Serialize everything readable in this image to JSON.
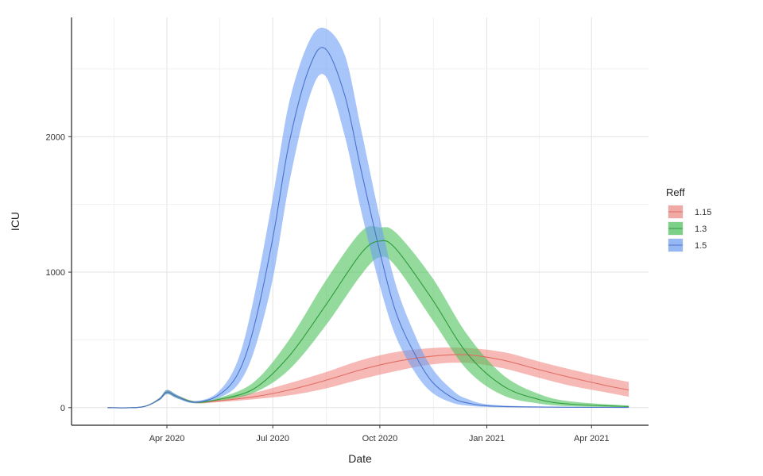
{
  "chart_data": {
    "type": "area",
    "xlabel": "Date",
    "ylabel": "ICU",
    "xlim": [
      "2020-01-10",
      "2021-05-20"
    ],
    "ylim": [
      -130,
      2880
    ],
    "x_ticks": [
      {
        "date": "2020-04-01",
        "label": "Apr 2020"
      },
      {
        "date": "2020-07-01",
        "label": "Jul 2020"
      },
      {
        "date": "2020-10-01",
        "label": "Oct 2020"
      },
      {
        "date": "2021-01-01",
        "label": "Jan 2021"
      },
      {
        "date": "2021-04-01",
        "label": "Apr 2021"
      }
    ],
    "y_ticks": [
      0,
      1000,
      2000
    ],
    "grid": true,
    "legend": {
      "title": "Reff",
      "position": "right"
    },
    "series": [
      {
        "name": "1.15",
        "color": "#f08a84",
        "line_color": "#e06d65",
        "points": [
          {
            "date": "2020-02-10",
            "y": 0,
            "lo": 0,
            "hi": 0
          },
          {
            "date": "2020-03-10",
            "y": 4,
            "lo": 3,
            "hi": 5
          },
          {
            "date": "2020-03-25",
            "y": 60,
            "lo": 52,
            "hi": 68
          },
          {
            "date": "2020-04-01",
            "y": 115,
            "lo": 100,
            "hi": 130
          },
          {
            "date": "2020-04-10",
            "y": 80,
            "lo": 68,
            "hi": 92
          },
          {
            "date": "2020-04-25",
            "y": 40,
            "lo": 32,
            "hi": 48
          },
          {
            "date": "2020-05-15",
            "y": 50,
            "lo": 40,
            "hi": 62
          },
          {
            "date": "2020-06-15",
            "y": 80,
            "lo": 62,
            "hi": 110
          },
          {
            "date": "2020-07-15",
            "y": 130,
            "lo": 90,
            "hi": 180
          },
          {
            "date": "2020-08-15",
            "y": 200,
            "lo": 140,
            "hi": 260
          },
          {
            "date": "2020-09-15",
            "y": 280,
            "lo": 210,
            "hi": 350
          },
          {
            "date": "2020-10-15",
            "y": 340,
            "lo": 270,
            "hi": 410
          },
          {
            "date": "2020-11-15",
            "y": 380,
            "lo": 320,
            "hi": 440
          },
          {
            "date": "2020-12-15",
            "y": 390,
            "lo": 330,
            "hi": 440
          },
          {
            "date": "2021-01-15",
            "y": 350,
            "lo": 290,
            "hi": 410
          },
          {
            "date": "2021-02-15",
            "y": 280,
            "lo": 220,
            "hi": 340
          },
          {
            "date": "2021-03-15",
            "y": 220,
            "lo": 160,
            "hi": 280
          },
          {
            "date": "2021-04-15",
            "y": 160,
            "lo": 110,
            "hi": 220
          },
          {
            "date": "2021-05-03",
            "y": 130,
            "lo": 80,
            "hi": 190
          }
        ]
      },
      {
        "name": "1.3",
        "color": "#4cc25a",
        "line_color": "#2e9c3c",
        "points": [
          {
            "date": "2020-02-10",
            "y": 0,
            "lo": 0,
            "hi": 0
          },
          {
            "date": "2020-03-10",
            "y": 4,
            "lo": 3,
            "hi": 5
          },
          {
            "date": "2020-03-25",
            "y": 60,
            "lo": 52,
            "hi": 68
          },
          {
            "date": "2020-04-01",
            "y": 115,
            "lo": 100,
            "hi": 130
          },
          {
            "date": "2020-04-10",
            "y": 80,
            "lo": 68,
            "hi": 92
          },
          {
            "date": "2020-04-25",
            "y": 40,
            "lo": 32,
            "hi": 48
          },
          {
            "date": "2020-05-15",
            "y": 60,
            "lo": 50,
            "hi": 70
          },
          {
            "date": "2020-06-15",
            "y": 140,
            "lo": 110,
            "hi": 190
          },
          {
            "date": "2020-07-15",
            "y": 380,
            "lo": 280,
            "hi": 500
          },
          {
            "date": "2020-08-15",
            "y": 750,
            "lo": 600,
            "hi": 930
          },
          {
            "date": "2020-09-15",
            "y": 1140,
            "lo": 980,
            "hi": 1300
          },
          {
            "date": "2020-10-01",
            "y": 1230,
            "lo": 1110,
            "hi": 1330
          },
          {
            "date": "2020-10-15",
            "y": 1170,
            "lo": 1040,
            "hi": 1290
          },
          {
            "date": "2020-11-15",
            "y": 800,
            "lo": 650,
            "hi": 960
          },
          {
            "date": "2020-12-15",
            "y": 400,
            "lo": 280,
            "hi": 540
          },
          {
            "date": "2021-01-15",
            "y": 160,
            "lo": 90,
            "hi": 240
          },
          {
            "date": "2021-02-15",
            "y": 60,
            "lo": 30,
            "hi": 100
          },
          {
            "date": "2021-03-15",
            "y": 25,
            "lo": 10,
            "hi": 45
          },
          {
            "date": "2021-05-03",
            "y": 8,
            "lo": 3,
            "hi": 15
          }
        ]
      },
      {
        "name": "1.5",
        "color": "#6d9ef5",
        "line_color": "#4a74cc",
        "points": [
          {
            "date": "2020-02-10",
            "y": 0,
            "lo": 0,
            "hi": 0
          },
          {
            "date": "2020-03-10",
            "y": 4,
            "lo": 3,
            "hi": 5
          },
          {
            "date": "2020-03-25",
            "y": 60,
            "lo": 52,
            "hi": 68
          },
          {
            "date": "2020-04-01",
            "y": 115,
            "lo": 100,
            "hi": 130
          },
          {
            "date": "2020-04-10",
            "y": 80,
            "lo": 68,
            "hi": 92
          },
          {
            "date": "2020-04-25",
            "y": 40,
            "lo": 32,
            "hi": 48
          },
          {
            "date": "2020-05-15",
            "y": 90,
            "lo": 70,
            "hi": 115
          },
          {
            "date": "2020-06-01",
            "y": 250,
            "lo": 170,
            "hi": 350
          },
          {
            "date": "2020-06-15",
            "y": 600,
            "lo": 420,
            "hi": 820
          },
          {
            "date": "2020-07-01",
            "y": 1250,
            "lo": 950,
            "hi": 1550
          },
          {
            "date": "2020-07-15",
            "y": 1950,
            "lo": 1650,
            "hi": 2250
          },
          {
            "date": "2020-08-01",
            "y": 2500,
            "lo": 2280,
            "hi": 2700
          },
          {
            "date": "2020-08-15",
            "y": 2650,
            "lo": 2450,
            "hi": 2800
          },
          {
            "date": "2020-09-01",
            "y": 2300,
            "lo": 2000,
            "hi": 2600
          },
          {
            "date": "2020-09-15",
            "y": 1750,
            "lo": 1450,
            "hi": 2050
          },
          {
            "date": "2020-10-01",
            "y": 1150,
            "lo": 900,
            "hi": 1400
          },
          {
            "date": "2020-10-15",
            "y": 700,
            "lo": 520,
            "hi": 900
          },
          {
            "date": "2020-11-01",
            "y": 380,
            "lo": 250,
            "hi": 520
          },
          {
            "date": "2020-11-15",
            "y": 190,
            "lo": 110,
            "hi": 290
          },
          {
            "date": "2020-12-01",
            "y": 80,
            "lo": 40,
            "hi": 140
          },
          {
            "date": "2020-12-15",
            "y": 35,
            "lo": 15,
            "hi": 65
          },
          {
            "date": "2021-01-15",
            "y": 8,
            "lo": 3,
            "hi": 15
          },
          {
            "date": "2021-05-03",
            "y": 1,
            "lo": 0,
            "hi": 2
          }
        ]
      }
    ]
  }
}
